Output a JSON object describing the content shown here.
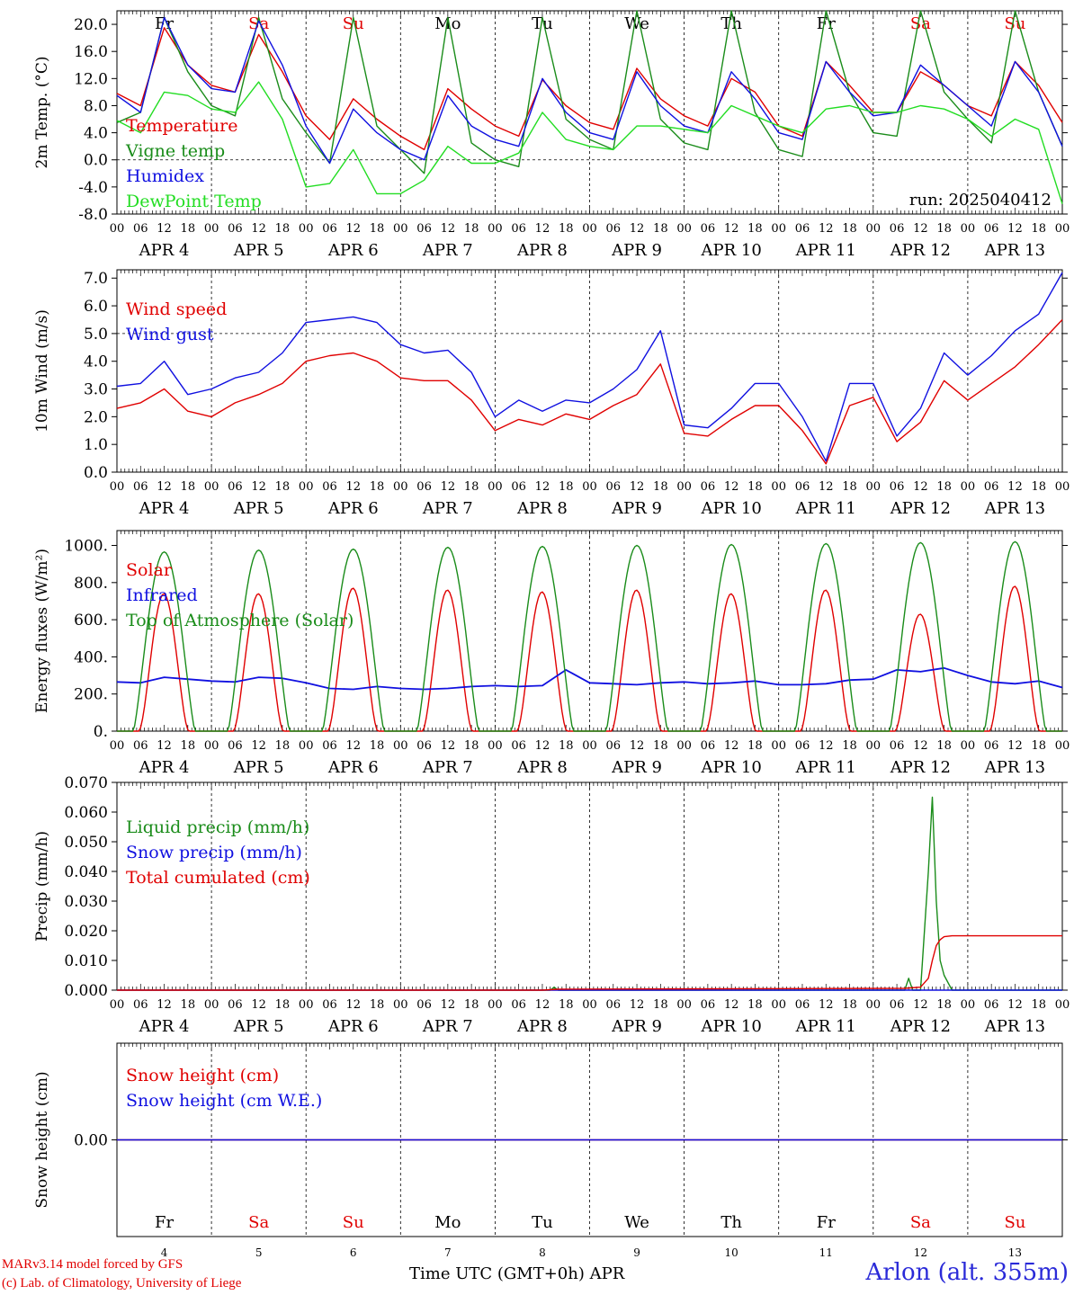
{
  "colors": {
    "red": "#e00000",
    "green": "#1a8c1a",
    "lightgreen": "#22dd22",
    "blue": "#1010e0",
    "black": "#000000"
  },
  "days": [
    {
      "abbr": "Fr",
      "num": "4",
      "weekend": false
    },
    {
      "abbr": "Sa",
      "num": "5",
      "weekend": true
    },
    {
      "abbr": "Su",
      "num": "6",
      "weekend": true
    },
    {
      "abbr": "Mo",
      "num": "7",
      "weekend": false
    },
    {
      "abbr": "Tu",
      "num": "8",
      "weekend": false
    },
    {
      "abbr": "We",
      "num": "9",
      "weekend": false
    },
    {
      "abbr": "Th",
      "num": "10",
      "weekend": false
    },
    {
      "abbr": "Fr",
      "num": "11",
      "weekend": false
    },
    {
      "abbr": "Sa",
      "num": "12",
      "weekend": true
    },
    {
      "abbr": "Su",
      "num": "13",
      "weekend": true
    }
  ],
  "month": "APR",
  "hour_labels": [
    "00",
    "06",
    "12",
    "18"
  ],
  "footer": {
    "credit_line1": "MARv3.14 model forced by GFS",
    "credit_line2": "(c) Lab. of Climatology, University of Liege",
    "xaxis_title": "Time UTC (GMT+0h) APR",
    "station": "Arlon (alt. 355m)"
  },
  "chart_data": [
    {
      "type": "line",
      "ylabel": "2m Temp. (°C)",
      "ylim": [
        -8,
        22
      ],
      "yticks": [
        "20.0",
        "16.0",
        "12.0",
        "8.0",
        "4.0",
        "0.0",
        "-4.0",
        "-8.0"
      ],
      "ytick_values": [
        20,
        16,
        12,
        8,
        4,
        0,
        -4,
        -8
      ],
      "reference_line": 0,
      "show_weekday_labels": true,
      "annotation": "run: 2025040412",
      "x": [
        0,
        6,
        12,
        18,
        24,
        30,
        36,
        42,
        48,
        54,
        60,
        66,
        72,
        78,
        84,
        90,
        96,
        102,
        108,
        114,
        120,
        126,
        132,
        138,
        144,
        150,
        156,
        162,
        168,
        174,
        180,
        186,
        192,
        198,
        204,
        210,
        216,
        222,
        228,
        234,
        240
      ],
      "series": [
        {
          "name": "Temperature",
          "color": "red",
          "values": [
            9.8,
            8,
            19.5,
            14,
            11,
            10,
            18.5,
            13,
            6.5,
            3,
            9,
            6,
            3.5,
            1.5,
            10.5,
            7.5,
            5,
            3.5,
            11.8,
            8,
            5.5,
            4.5,
            13.5,
            9,
            6.5,
            5,
            12,
            10,
            5,
            3.5,
            14.5,
            11,
            7,
            7,
            13,
            11,
            8,
            6.5,
            14.5,
            11,
            5.5
          ]
        },
        {
          "name": "Vigne temp",
          "color": "green",
          "values": [
            5.5,
            7,
            21,
            13,
            8,
            6.5,
            21,
            9,
            4,
            -0.5,
            21,
            5,
            1.5,
            -2,
            21,
            2.5,
            0,
            -1,
            21,
            6,
            3,
            1.5,
            22,
            6,
            2.5,
            1.5,
            22,
            7,
            1.5,
            0.5,
            22,
            10,
            4,
            3.5,
            22,
            10,
            6,
            2.5,
            22,
            10,
            2
          ]
        },
        {
          "name": "Humidex",
          "color": "blue",
          "values": [
            9.5,
            7,
            21,
            14,
            10.5,
            10,
            20.5,
            14,
            5,
            -0.5,
            7.5,
            4,
            1.5,
            0,
            9.5,
            5,
            3,
            2,
            12,
            7,
            4,
            3,
            13,
            8,
            5,
            4,
            13,
            9,
            4,
            3,
            14.5,
            10,
            6.5,
            7,
            14,
            11,
            8,
            5,
            14.5,
            10,
            2
          ]
        },
        {
          "name": "DewPoint Temp",
          "color": "lightgreen",
          "values": [
            5.8,
            4,
            10,
            9.5,
            7.5,
            7,
            11.5,
            6,
            -4,
            -3.5,
            1.5,
            -5,
            -5,
            -3,
            2,
            -0.5,
            -0.5,
            1,
            7,
            3,
            2,
            1.5,
            5,
            5,
            4.5,
            4,
            8,
            6.5,
            5,
            4,
            7.5,
            8,
            7,
            7,
            8,
            7.5,
            6,
            3.5,
            6,
            4.5,
            -6.5
          ]
        }
      ]
    },
    {
      "type": "line",
      "ylabel": "10m Wind (m/s)",
      "ylim": [
        0,
        7.3
      ],
      "yticks": [
        "7.0",
        "6.0",
        "5.0",
        "4.0",
        "3.0",
        "2.0",
        "1.0",
        "0.0"
      ],
      "ytick_values": [
        7,
        6,
        5,
        4,
        3,
        2,
        1,
        0
      ],
      "reference_line": 5,
      "show_weekday_labels": false,
      "x": [
        0,
        6,
        12,
        18,
        24,
        30,
        36,
        42,
        48,
        54,
        60,
        66,
        72,
        78,
        84,
        90,
        96,
        102,
        108,
        114,
        120,
        126,
        132,
        138,
        144,
        150,
        156,
        162,
        168,
        174,
        180,
        186,
        192,
        198,
        204,
        210,
        216,
        222,
        228,
        234,
        240
      ],
      "series": [
        {
          "name": "Wind speed",
          "color": "red",
          "values": [
            2.3,
            2.5,
            3,
            2.2,
            2,
            2.5,
            2.8,
            3.2,
            4,
            4.2,
            4.3,
            4,
            3.4,
            3.3,
            3.3,
            2.6,
            1.5,
            1.9,
            1.7,
            2.1,
            1.9,
            2.4,
            2.8,
            3.9,
            1.4,
            1.3,
            1.9,
            2.4,
            2.4,
            1.5,
            0.3,
            2.4,
            2.7,
            1.1,
            1.8,
            3.3,
            2.6,
            3.2,
            3.8,
            4.6,
            5.5
          ]
        },
        {
          "name": "Wind gust",
          "color": "blue",
          "values": [
            3.1,
            3.2,
            4,
            2.8,
            3,
            3.4,
            3.6,
            4.3,
            5.4,
            5.5,
            5.6,
            5.4,
            4.6,
            4.3,
            4.4,
            3.6,
            2,
            2.6,
            2.2,
            2.6,
            2.5,
            3,
            3.7,
            5.1,
            1.7,
            1.6,
            2.3,
            3.2,
            3.2,
            2,
            0.4,
            3.2,
            3.2,
            1.3,
            2.3,
            4.3,
            3.5,
            4.2,
            5.1,
            5.7,
            7.2
          ]
        }
      ]
    },
    {
      "type": "line",
      "ylabel": "Energy fluxes (W/m²)",
      "ylim": [
        0,
        1080
      ],
      "yticks": [
        "1000.",
        "800.",
        "600.",
        "400.",
        "200.",
        "0."
      ],
      "ytick_values": [
        1000,
        800,
        600,
        400,
        200,
        0
      ],
      "show_weekday_labels": false,
      "series": [
        {
          "name": "Solar",
          "color": "red",
          "daily_peaks": [
            740,
            740,
            770,
            760,
            750,
            760,
            740,
            760,
            630,
            780
          ]
        },
        {
          "name": "Infrared",
          "color": "blue",
          "x": [
            0,
            6,
            12,
            18,
            24,
            30,
            36,
            42,
            48,
            54,
            60,
            66,
            72,
            78,
            84,
            90,
            96,
            102,
            108,
            114,
            120,
            126,
            132,
            138,
            144,
            150,
            156,
            162,
            168,
            174,
            180,
            186,
            192,
            198,
            204,
            210,
            216,
            222,
            228,
            234,
            240
          ],
          "values": [
            265,
            260,
            290,
            280,
            270,
            265,
            290,
            285,
            260,
            230,
            225,
            240,
            230,
            225,
            230,
            240,
            245,
            240,
            245,
            330,
            260,
            255,
            250,
            260,
            265,
            255,
            260,
            270,
            250,
            250,
            255,
            275,
            280,
            330,
            320,
            340,
            300,
            265,
            255,
            270,
            235
          ]
        },
        {
          "name": "Top of Atmosphere (Solar)",
          "color": "green",
          "daily_peaks": [
            965,
            975,
            980,
            990,
            995,
            1000,
            1005,
            1010,
            1015,
            1020
          ]
        }
      ]
    },
    {
      "type": "line",
      "ylabel": "Precip (mm/h)",
      "ylim": [
        0,
        0.07
      ],
      "yticks": [
        "0.070",
        "0.060",
        "0.050",
        "0.040",
        "0.030",
        "0.020",
        "0.010",
        "0.000"
      ],
      "ytick_values": [
        0.07,
        0.06,
        0.05,
        0.04,
        0.03,
        0.02,
        0.01,
        0
      ],
      "show_weekday_labels": false,
      "series": [
        {
          "name": "Liquid precip (mm/h)",
          "color": "green",
          "x": [
            0,
            110,
            111,
            112,
            200,
            201,
            202,
            204,
            206,
            207,
            208,
            209,
            210,
            212,
            240
          ],
          "values": [
            0,
            0,
            0.001,
            0,
            0,
            0.004,
            0,
            0,
            0.04,
            0.065,
            0.03,
            0.01,
            0.005,
            0,
            0
          ]
        },
        {
          "name": "Snow precip (mm/h)",
          "color": "blue",
          "x": [
            0,
            240
          ],
          "values": [
            0,
            0
          ]
        },
        {
          "name": "Total cumulated (cm)",
          "color": "red",
          "x": [
            0,
            108,
            112,
            200,
            204,
            206,
            207,
            208,
            209,
            210,
            212,
            240
          ],
          "values": [
            0,
            0,
            0.0003,
            0.0006,
            0.001,
            0.004,
            0.01,
            0.015,
            0.017,
            0.018,
            0.0183,
            0.0183
          ]
        }
      ]
    },
    {
      "type": "line",
      "ylabel": "Snow height (cm)",
      "ylim": [
        -1,
        1
      ],
      "yticks": [
        "0.00"
      ],
      "ytick_values": [
        0
      ],
      "show_weekday_labels": false,
      "series": [
        {
          "name": "Snow height (cm)",
          "color": "red",
          "x": [
            0,
            240
          ],
          "values": [
            0,
            0
          ]
        },
        {
          "name": "Snow height (cm W.E.)",
          "color": "blue",
          "x": [
            0,
            240
          ],
          "values": [
            0,
            0
          ]
        }
      ]
    }
  ]
}
